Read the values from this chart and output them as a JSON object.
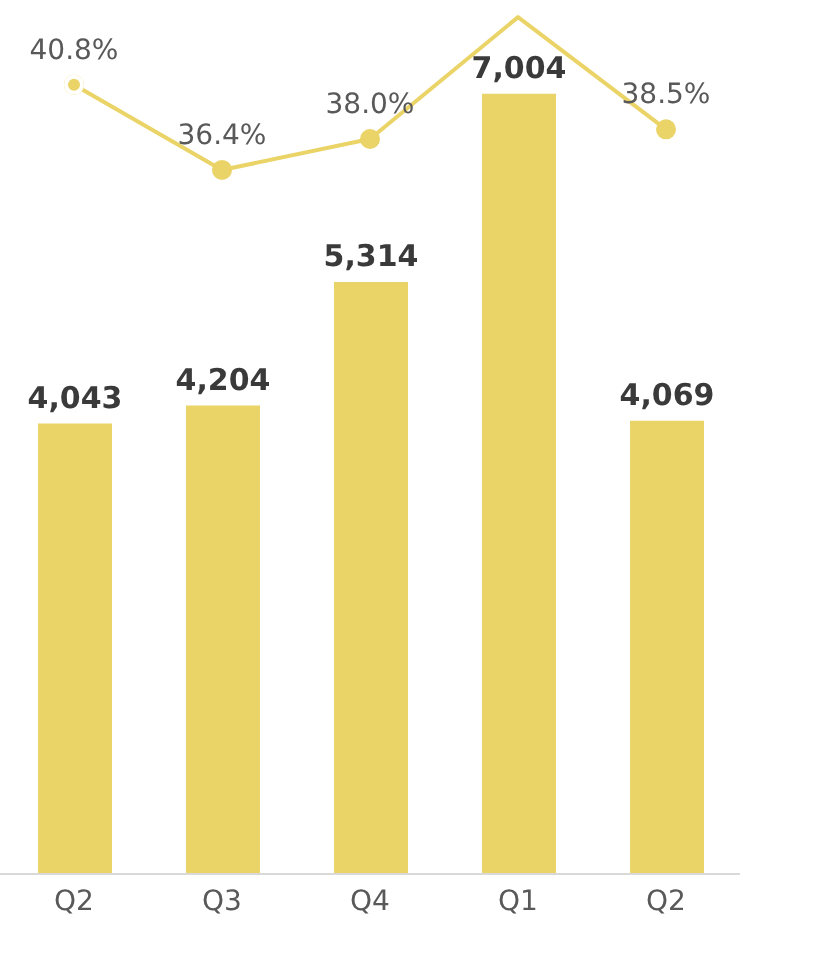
{
  "chart_data": {
    "type": "bar",
    "categories": [
      "Q2",
      "Q3",
      "Q4",
      "Q1",
      "Q2"
    ],
    "tick_labels": "x",
    "series": [
      {
        "color": "#ebd467",
        "values": [
          4043,
          4204,
          5314,
          7004,
          4069
        ],
        "value_labels": [
          "4,043",
          "4,204",
          "5,314",
          "7,004",
          "4,069"
        ]
      },
      {
        "type": "line",
        "axis": "y2",
        "color": "#ebd467",
        "marker": "circle",
        "values": [
          40.8,
          36.4,
          38.0,
          44.3,
          38.5
        ],
        "value_labels": [
          "40.8%",
          "36.4%",
          "38.0%",
          null,
          "38.5%"
        ]
      }
    ]
  }
}
